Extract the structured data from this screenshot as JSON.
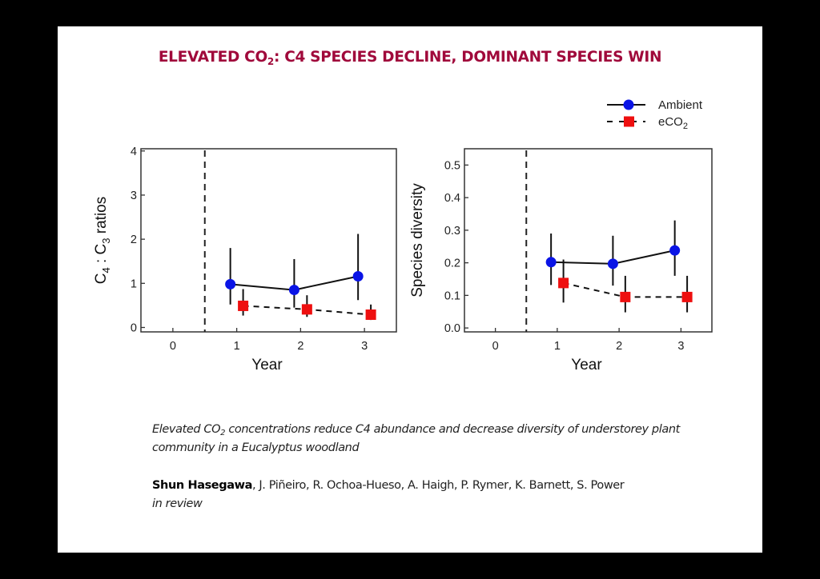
{
  "slide": {
    "title_pre": "ELEVATED CO",
    "title_sub": "2",
    "title_post": ": C4 SPECIES DECLINE, DOMINANT SPECIES WIN",
    "title_color": "#a0093b",
    "caption_pre": "Elevated CO",
    "caption_sub": "2",
    "caption_post": " concentrations reduce C4 abundance and decrease diversity of understorey plant community in a Eucalyptus woodland",
    "lead_author": "Shun Hasegawa",
    "coauthors": ", J. Piñeiro, R. Ochoa-Hueso, A. Haigh, P. Rymer, K. Barnett, S. Power",
    "status": "in review"
  },
  "legend": {
    "items": [
      {
        "label": "Ambient",
        "sub": "",
        "color": "#0a14e6",
        "marker": "circle",
        "line": "solid"
      },
      {
        "label": "eCO",
        "sub": "2",
        "color": "#ee0f0f",
        "marker": "square",
        "line": "dashed"
      }
    ]
  },
  "chart_data": [
    {
      "type": "line",
      "title": "",
      "xlabel": "Year",
      "ylabel_parts": [
        "C",
        "4",
        " : C",
        "3",
        " ratios"
      ],
      "ylabel": "C4 : C3 ratios",
      "xlim": [
        -0.5,
        3.5
      ],
      "ylim": [
        -0.1,
        4.05
      ],
      "xticks": [
        0,
        1,
        2,
        3
      ],
      "yticks": [
        0,
        1,
        2,
        3,
        4
      ],
      "ytick_labels": [
        "0",
        "1",
        "2",
        "3",
        "4"
      ],
      "treatment_start_line": 0.5,
      "grid": false,
      "legend": "top-right",
      "series": [
        {
          "name": "Ambient",
          "x": [
            1,
            2,
            3
          ],
          "values": [
            0.98,
            0.85,
            1.16
          ],
          "err_low": [
            0.52,
            0.45,
            0.62
          ],
          "err_high": [
            1.8,
            1.55,
            2.12
          ],
          "offset": -0.1
        },
        {
          "name": "eCO2",
          "x": [
            1,
            2,
            3
          ],
          "values": [
            0.49,
            0.41,
            0.29
          ],
          "err_low": [
            0.27,
            0.24,
            0.17
          ],
          "err_high": [
            0.87,
            0.73,
            0.52
          ],
          "offset": 0.1
        }
      ]
    },
    {
      "type": "line",
      "title": "",
      "xlabel": "Year",
      "ylabel_parts": [
        "Species diversity"
      ],
      "ylabel": "Species diversity",
      "xlim": [
        -0.5,
        3.5
      ],
      "ylim": [
        -0.012,
        0.55
      ],
      "xticks": [
        0,
        1,
        2,
        3
      ],
      "yticks": [
        0,
        0.1,
        0.2,
        0.3,
        0.4,
        0.5
      ],
      "ytick_labels": [
        "0.0",
        "0.1",
        "0.2",
        "0.3",
        "0.4",
        "0.5"
      ],
      "treatment_start_line": 0.5,
      "grid": false,
      "legend": "top-right",
      "series": [
        {
          "name": "Ambient",
          "x": [
            1,
            2,
            3
          ],
          "values": [
            0.202,
            0.197,
            0.238
          ],
          "err_low": [
            0.132,
            0.13,
            0.16
          ],
          "err_high": [
            0.29,
            0.283,
            0.33
          ],
          "offset": -0.1
        },
        {
          "name": "eCO2",
          "x": [
            1,
            2,
            3
          ],
          "values": [
            0.138,
            0.095,
            0.095
          ],
          "err_low": [
            0.078,
            0.048,
            0.048
          ],
          "err_high": [
            0.21,
            0.16,
            0.16
          ],
          "offset": 0.1
        }
      ]
    }
  ]
}
